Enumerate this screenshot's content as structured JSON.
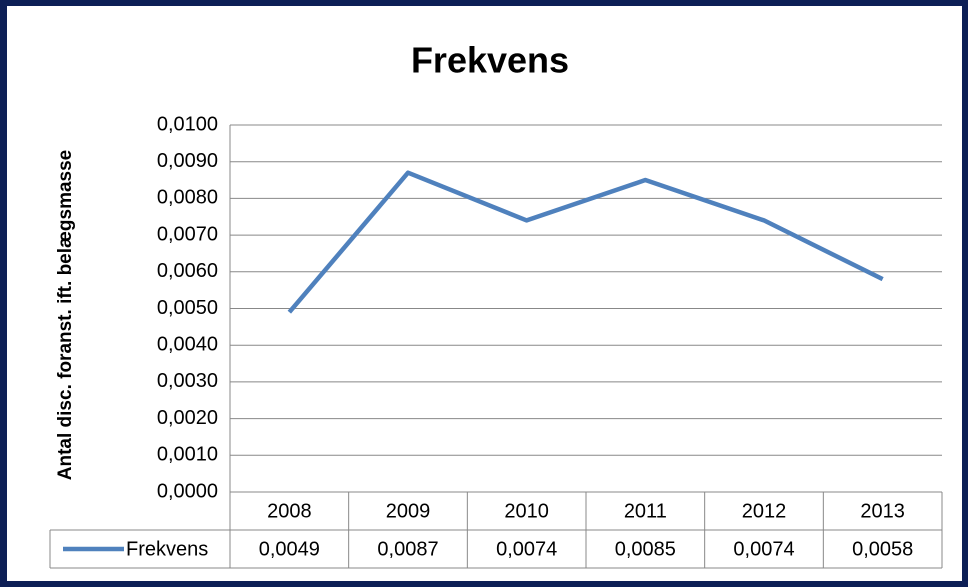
{
  "chart_data": {
    "type": "line",
    "title": "Frekvens",
    "y_label": "Antal disc. foranst. ift. belægsmasse",
    "categories": [
      "2008",
      "2009",
      "2010",
      "2011",
      "2012",
      "2013"
    ],
    "series": [
      {
        "name": "Frekvens",
        "color": "#4f81bd",
        "values": [
          0.0049,
          0.0087,
          0.0074,
          0.0085,
          0.0074,
          0.0058
        ],
        "value_labels": [
          "0,0049",
          "0,0087",
          "0,0074",
          "0,0085",
          "0,0074",
          "0,0058"
        ]
      }
    ],
    "ylim": [
      0,
      0.01
    ],
    "yticks": [
      {
        "value": 0,
        "label": "0,0000"
      },
      {
        "value": 0.001,
        "label": "0,0010"
      },
      {
        "value": 0.002,
        "label": "0,0020"
      },
      {
        "value": 0.003,
        "label": "0,0030"
      },
      {
        "value": 0.004,
        "label": "0,0040"
      },
      {
        "value": 0.005,
        "label": "0,0050"
      },
      {
        "value": 0.006,
        "label": "0,0060"
      },
      {
        "value": 0.007,
        "label": "0,0070"
      },
      {
        "value": 0.008,
        "label": "0,0080"
      },
      {
        "value": 0.009,
        "label": "0,0090"
      },
      {
        "value": 0.01,
        "label": "0,0100"
      }
    ],
    "grid": true
  }
}
